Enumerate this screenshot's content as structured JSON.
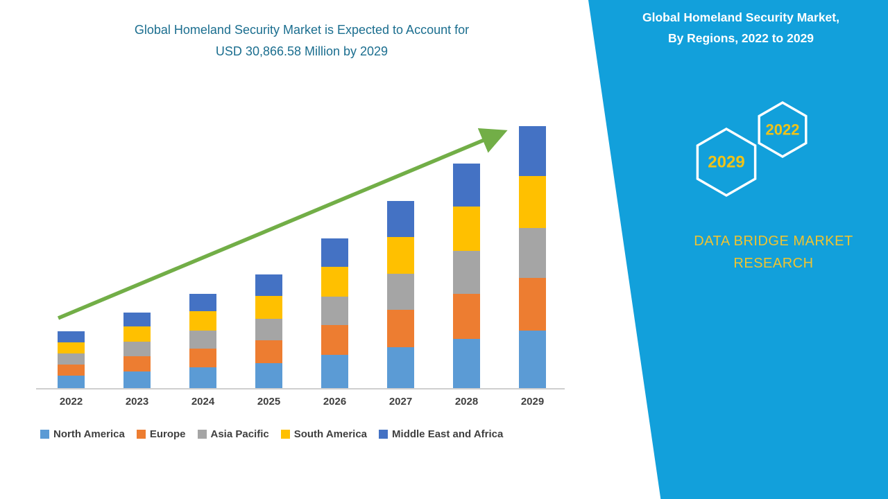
{
  "page": {
    "background": "#ffffff"
  },
  "header": {
    "title_line1": "Global Homeland Security Market is Expected to Account for",
    "title_line2": "USD 30,866.58 Million by 2029",
    "title_color": "#1b6e8f"
  },
  "chart_data": {
    "type": "bar",
    "stacked": true,
    "title": "Global Homeland Security Market is Expected to Account for USD 30,866.58 Million by 2029",
    "unit": "USD Million",
    "categories": [
      "2022",
      "2023",
      "2024",
      "2025",
      "2026",
      "2027",
      "2028",
      "2029"
    ],
    "series": [
      {
        "name": "North America",
        "color": "#5b9bd5",
        "values": [
          1500,
          1980,
          2460,
          2970,
          3900,
          4850,
          5830,
          6800
        ]
      },
      {
        "name": "Europe",
        "color": "#ed7d31",
        "values": [
          1300,
          1780,
          2230,
          2690,
          3540,
          4410,
          5290,
          6170
        ]
      },
      {
        "name": "Asia Pacific",
        "color": "#a5a5a5",
        "values": [
          1280,
          1700,
          2120,
          2550,
          3360,
          4180,
          5020,
          5870
        ]
      },
      {
        "name": "South America",
        "color": "#ffc000",
        "values": [
          1350,
          1780,
          2220,
          2680,
          3540,
          4400,
          5290,
          6160
        ]
      },
      {
        "name": "Middle East and Africa",
        "color": "#4472c4",
        "values": [
          1280,
          1690,
          2110,
          2540,
          3350,
          4190,
          5020,
          5866.58
        ]
      }
    ],
    "ylim": [
      0,
      33000
    ],
    "grid": false,
    "legend_position": "bottom-left",
    "trend_arrow_color": "#72ae47"
  },
  "side_panel": {
    "background": "#12a0db",
    "title_line1": "Global Homeland Security Market,",
    "title_line2": "By Regions, 2022 to 2029",
    "hexagons": [
      {
        "label": "2029"
      },
      {
        "label": "2022"
      }
    ],
    "brand": "DATA BRIDGE MARKET RESEARCH",
    "accent_yellow": "#efc319"
  }
}
